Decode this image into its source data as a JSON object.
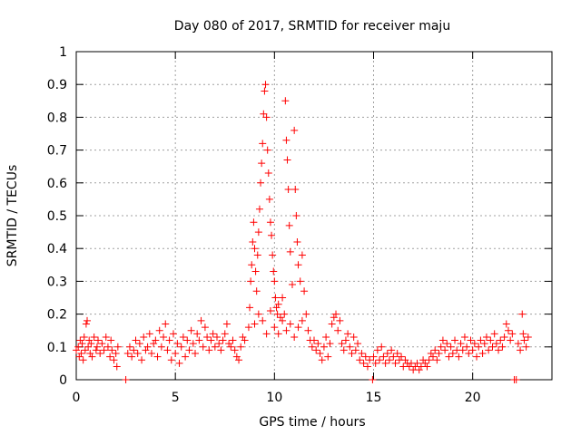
{
  "chart_data": {
    "type": "scatter",
    "title": "Day 080 of 2017, SRMTID for receiver maju",
    "xlabel": "GPS time / hours",
    "ylabel": "SRMTID / TECUs",
    "xlim": [
      0,
      24
    ],
    "ylim": [
      0,
      1
    ],
    "x_ticks": [
      0,
      5,
      10,
      15,
      20
    ],
    "x_tick_labels": [
      "0",
      "5",
      "10",
      "15",
      "20"
    ],
    "y_ticks": [
      0,
      0.1,
      0.2,
      0.3,
      0.4,
      0.5,
      0.6,
      0.7,
      0.8,
      0.9,
      1
    ],
    "y_tick_labels": [
      "0",
      "0.1",
      "0.2",
      "0.3",
      "0.4",
      "0.5",
      "0.6",
      "0.7",
      "0.8",
      "0.9",
      "1"
    ],
    "grid": true,
    "marker": "+",
    "color": "#ff0000",
    "series": [
      {
        "name": "SRMTID",
        "points": [
          [
            0.0,
            0.09
          ],
          [
            0.1,
            0.1
          ],
          [
            0.15,
            0.07
          ],
          [
            0.2,
            0.12
          ],
          [
            0.25,
            0.08
          ],
          [
            0.3,
            0.11
          ],
          [
            0.35,
            0.06
          ],
          [
            0.4,
            0.13
          ],
          [
            0.45,
            0.09
          ],
          [
            0.5,
            0.17
          ],
          [
            0.55,
            0.18
          ],
          [
            0.6,
            0.1
          ],
          [
            0.65,
            0.12
          ],
          [
            0.7,
            0.08
          ],
          [
            0.75,
            0.11
          ],
          [
            0.8,
            0.07
          ],
          [
            0.9,
            0.13
          ],
          [
            1.0,
            0.09
          ],
          [
            1.05,
            0.1
          ],
          [
            1.1,
            0.12
          ],
          [
            1.2,
            0.08
          ],
          [
            1.3,
            0.11
          ],
          [
            1.4,
            0.09
          ],
          [
            1.5,
            0.13
          ],
          [
            1.6,
            0.1
          ],
          [
            1.7,
            0.07
          ],
          [
            1.75,
            0.12
          ],
          [
            1.8,
            0.09
          ],
          [
            1.9,
            0.06
          ],
          [
            2.0,
            0.08
          ],
          [
            2.05,
            0.04
          ],
          [
            2.1,
            0.1
          ],
          [
            2.5,
            0.0
          ],
          [
            2.6,
            0.08
          ],
          [
            2.7,
            0.1
          ],
          [
            2.8,
            0.07
          ],
          [
            2.9,
            0.09
          ],
          [
            3.0,
            0.12
          ],
          [
            3.1,
            0.08
          ],
          [
            3.2,
            0.11
          ],
          [
            3.3,
            0.06
          ],
          [
            3.4,
            0.13
          ],
          [
            3.5,
            0.09
          ],
          [
            3.6,
            0.1
          ],
          [
            3.7,
            0.14
          ],
          [
            3.8,
            0.08
          ],
          [
            3.9,
            0.11
          ],
          [
            4.0,
            0.12
          ],
          [
            4.1,
            0.07
          ],
          [
            4.2,
            0.15
          ],
          [
            4.3,
            0.1
          ],
          [
            4.4,
            0.13
          ],
          [
            4.5,
            0.17
          ],
          [
            4.6,
            0.09
          ],
          [
            4.7,
            0.12
          ],
          [
            4.8,
            0.06
          ],
          [
            4.9,
            0.14
          ],
          [
            5.0,
            0.08
          ],
          [
            5.1,
            0.11
          ],
          [
            5.2,
            0.05
          ],
          [
            5.3,
            0.1
          ],
          [
            5.4,
            0.13
          ],
          [
            5.5,
            0.07
          ],
          [
            5.6,
            0.12
          ],
          [
            5.7,
            0.09
          ],
          [
            5.8,
            0.15
          ],
          [
            5.9,
            0.11
          ],
          [
            6.0,
            0.08
          ],
          [
            6.1,
            0.14
          ],
          [
            6.2,
            0.12
          ],
          [
            6.3,
            0.18
          ],
          [
            6.4,
            0.1
          ],
          [
            6.5,
            0.16
          ],
          [
            6.6,
            0.13
          ],
          [
            6.7,
            0.09
          ],
          [
            6.8,
            0.12
          ],
          [
            6.9,
            0.14
          ],
          [
            7.0,
            0.1
          ],
          [
            7.1,
            0.13
          ],
          [
            7.2,
            0.11
          ],
          [
            7.3,
            0.09
          ],
          [
            7.4,
            0.12
          ],
          [
            7.5,
            0.14
          ],
          [
            7.6,
            0.17
          ],
          [
            7.7,
            0.11
          ],
          [
            7.8,
            0.1
          ],
          [
            7.9,
            0.12
          ],
          [
            8.0,
            0.09
          ],
          [
            8.1,
            0.07
          ],
          [
            8.2,
            0.06
          ],
          [
            8.3,
            0.1
          ],
          [
            8.4,
            0.13
          ],
          [
            8.5,
            0.12
          ],
          [
            8.7,
            0.16
          ],
          [
            8.75,
            0.22
          ],
          [
            8.8,
            0.3
          ],
          [
            8.85,
            0.35
          ],
          [
            8.9,
            0.42
          ],
          [
            8.95,
            0.48
          ],
          [
            9.0,
            0.4
          ],
          [
            9.05,
            0.33
          ],
          [
            9.1,
            0.27
          ],
          [
            9.15,
            0.38
          ],
          [
            9.2,
            0.45
          ],
          [
            9.25,
            0.52
          ],
          [
            9.3,
            0.6
          ],
          [
            9.35,
            0.66
          ],
          [
            9.4,
            0.72
          ],
          [
            9.45,
            0.81
          ],
          [
            9.5,
            0.88
          ],
          [
            9.55,
            0.9
          ],
          [
            9.6,
            0.8
          ],
          [
            9.65,
            0.7
          ],
          [
            9.7,
            0.63
          ],
          [
            9.75,
            0.55
          ],
          [
            9.8,
            0.48
          ],
          [
            9.85,
            0.44
          ],
          [
            9.9,
            0.38
          ],
          [
            9.95,
            0.33
          ],
          [
            10.0,
            0.3
          ],
          [
            10.05,
            0.25
          ],
          [
            10.1,
            0.22
          ],
          [
            10.15,
            0.2
          ],
          [
            10.2,
            0.23
          ],
          [
            10.3,
            0.19
          ],
          [
            10.4,
            0.25
          ],
          [
            10.5,
            0.2
          ],
          [
            10.55,
            0.85
          ],
          [
            10.6,
            0.73
          ],
          [
            10.65,
            0.67
          ],
          [
            10.7,
            0.58
          ],
          [
            10.75,
            0.47
          ],
          [
            10.8,
            0.39
          ],
          [
            10.9,
            0.29
          ],
          [
            11.0,
            0.76
          ],
          [
            11.05,
            0.58
          ],
          [
            11.1,
            0.5
          ],
          [
            11.15,
            0.42
          ],
          [
            11.2,
            0.35
          ],
          [
            11.3,
            0.3
          ],
          [
            11.4,
            0.38
          ],
          [
            11.5,
            0.27
          ],
          [
            11.6,
            0.2
          ],
          [
            11.7,
            0.15
          ],
          [
            11.8,
            0.12
          ],
          [
            11.9,
            0.1
          ],
          [
            9.0,
            0.17
          ],
          [
            9.2,
            0.2
          ],
          [
            9.4,
            0.18
          ],
          [
            9.6,
            0.14
          ],
          [
            9.8,
            0.21
          ],
          [
            10.0,
            0.16
          ],
          [
            10.2,
            0.14
          ],
          [
            10.4,
            0.18
          ],
          [
            10.6,
            0.15
          ],
          [
            10.8,
            0.17
          ],
          [
            11.0,
            0.13
          ],
          [
            11.2,
            0.16
          ],
          [
            11.4,
            0.18
          ],
          [
            12.0,
            0.12
          ],
          [
            12.1,
            0.09
          ],
          [
            12.2,
            0.11
          ],
          [
            12.3,
            0.08
          ],
          [
            12.4,
            0.06
          ],
          [
            12.5,
            0.1
          ],
          [
            12.6,
            0.13
          ],
          [
            12.7,
            0.07
          ],
          [
            12.8,
            0.11
          ],
          [
            12.9,
            0.17
          ],
          [
            13.0,
            0.19
          ],
          [
            13.1,
            0.2
          ],
          [
            13.2,
            0.15
          ],
          [
            13.3,
            0.18
          ],
          [
            13.4,
            0.11
          ],
          [
            13.5,
            0.09
          ],
          [
            13.6,
            0.12
          ],
          [
            13.7,
            0.14
          ],
          [
            13.8,
            0.1
          ],
          [
            13.9,
            0.08
          ],
          [
            14.0,
            0.13
          ],
          [
            14.1,
            0.09
          ],
          [
            14.2,
            0.11
          ],
          [
            14.3,
            0.06
          ],
          [
            14.4,
            0.08
          ],
          [
            14.5,
            0.05
          ],
          [
            14.6,
            0.07
          ],
          [
            14.7,
            0.04
          ],
          [
            14.8,
            0.06
          ],
          [
            14.95,
            0.0
          ],
          [
            15.0,
            0.07
          ],
          [
            15.1,
            0.05
          ],
          [
            15.2,
            0.09
          ],
          [
            15.3,
            0.06
          ],
          [
            15.4,
            0.1
          ],
          [
            15.5,
            0.07
          ],
          [
            15.6,
            0.05
          ],
          [
            15.7,
            0.08
          ],
          [
            15.8,
            0.06
          ],
          [
            15.9,
            0.09
          ],
          [
            16.0,
            0.07
          ],
          [
            16.1,
            0.05
          ],
          [
            16.2,
            0.08
          ],
          [
            16.3,
            0.06
          ],
          [
            16.4,
            0.07
          ],
          [
            16.5,
            0.04
          ],
          [
            16.6,
            0.06
          ],
          [
            16.7,
            0.05
          ],
          [
            16.8,
            0.04
          ],
          [
            16.9,
            0.05
          ],
          [
            17.0,
            0.03
          ],
          [
            17.1,
            0.04
          ],
          [
            17.2,
            0.05
          ],
          [
            17.3,
            0.03
          ],
          [
            17.4,
            0.04
          ],
          [
            17.5,
            0.06
          ],
          [
            17.6,
            0.05
          ],
          [
            17.7,
            0.04
          ],
          [
            17.8,
            0.06
          ],
          [
            17.9,
            0.08
          ],
          [
            18.0,
            0.07
          ],
          [
            18.1,
            0.09
          ],
          [
            18.2,
            0.06
          ],
          [
            18.3,
            0.08
          ],
          [
            18.4,
            0.1
          ],
          [
            18.5,
            0.12
          ],
          [
            18.6,
            0.09
          ],
          [
            18.7,
            0.11
          ],
          [
            18.8,
            0.07
          ],
          [
            18.9,
            0.1
          ],
          [
            19.0,
            0.08
          ],
          [
            19.1,
            0.12
          ],
          [
            19.2,
            0.09
          ],
          [
            19.3,
            0.07
          ],
          [
            19.4,
            0.11
          ],
          [
            19.5,
            0.09
          ],
          [
            19.6,
            0.13
          ],
          [
            19.7,
            0.1
          ],
          [
            19.8,
            0.08
          ],
          [
            19.9,
            0.12
          ],
          [
            20.0,
            0.09
          ],
          [
            20.1,
            0.11
          ],
          [
            20.2,
            0.07
          ],
          [
            20.3,
            0.1
          ],
          [
            20.4,
            0.12
          ],
          [
            20.5,
            0.08
          ],
          [
            20.6,
            0.11
          ],
          [
            20.7,
            0.13
          ],
          [
            20.8,
            0.09
          ],
          [
            20.9,
            0.12
          ],
          [
            21.0,
            0.1
          ],
          [
            21.1,
            0.14
          ],
          [
            21.2,
            0.11
          ],
          [
            21.3,
            0.09
          ],
          [
            21.4,
            0.12
          ],
          [
            21.5,
            0.1
          ],
          [
            21.6,
            0.13
          ],
          [
            21.7,
            0.17
          ],
          [
            21.8,
            0.15
          ],
          [
            21.9,
            0.12
          ],
          [
            22.0,
            0.14
          ],
          [
            22.1,
            0.0
          ],
          [
            22.2,
            0.0
          ],
          [
            22.3,
            0.11
          ],
          [
            22.4,
            0.09
          ],
          [
            22.5,
            0.2
          ],
          [
            22.55,
            0.14
          ],
          [
            22.6,
            0.12
          ],
          [
            22.7,
            0.1
          ],
          [
            22.8,
            0.13
          ]
        ]
      }
    ]
  }
}
